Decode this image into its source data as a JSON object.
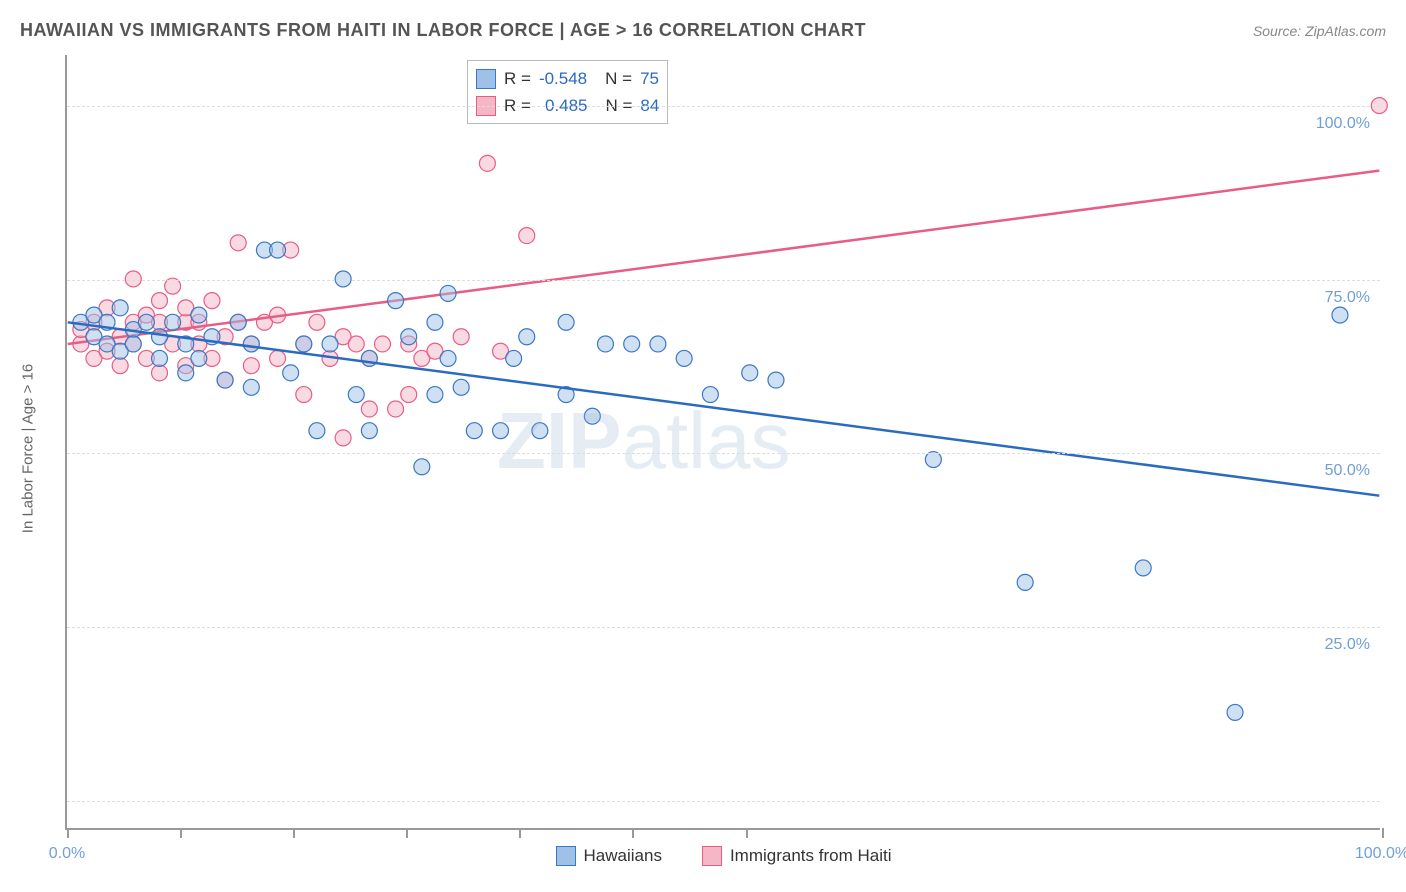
{
  "title": "HAWAIIAN VS IMMIGRANTS FROM HAITI IN LABOR FORCE | AGE > 16 CORRELATION CHART",
  "source": "Source: ZipAtlas.com",
  "y_axis_label": "In Labor Force | Age > 16",
  "watermark": "ZIPatlas",
  "chart": {
    "type": "scatter",
    "xlim": [
      0,
      100
    ],
    "ylim": [
      0,
      107
    ],
    "x_ticks": [
      0,
      8.6,
      17.2,
      25.8,
      34.4,
      43.0,
      51.6,
      100
    ],
    "x_tick_labels": {
      "0": "0.0%",
      "100": "100.0%"
    },
    "y_gridlines": [
      4,
      28,
      52,
      76,
      100
    ],
    "y_tick_labels": {
      "28": "25.0%",
      "52": "50.0%",
      "76": "75.0%",
      "100": "100.0%"
    },
    "grid_color": "#dddddd",
    "axis_color": "#999999",
    "background_color": "#ffffff",
    "tick_label_color": "#6f9fd8",
    "marker_radius": 8,
    "marker_opacity": 0.5,
    "line_width": 2.5
  },
  "series": {
    "blue": {
      "label": "Hawaiians",
      "fill": "#9fc1e8",
      "stroke": "#3b78c4",
      "line_color": "#2a6bc0",
      "R": "-0.548",
      "N": "75",
      "trend": {
        "x1": 0,
        "y1": 70,
        "x2": 100,
        "y2": 46
      },
      "points": [
        [
          1,
          70
        ],
        [
          2,
          68
        ],
        [
          2,
          71
        ],
        [
          3,
          67
        ],
        [
          3,
          70
        ],
        [
          4,
          66
        ],
        [
          4,
          72
        ],
        [
          5,
          69
        ],
        [
          5,
          67
        ],
        [
          6,
          70
        ],
        [
          7,
          68
        ],
        [
          7,
          65
        ],
        [
          8,
          70
        ],
        [
          9,
          67
        ],
        [
          9,
          63
        ],
        [
          10,
          65
        ],
        [
          10,
          71
        ],
        [
          11,
          68
        ],
        [
          12,
          62
        ],
        [
          13,
          70
        ],
        [
          14,
          67
        ],
        [
          14,
          61
        ],
        [
          15,
          80
        ],
        [
          16,
          80
        ],
        [
          17,
          63
        ],
        [
          18,
          67
        ],
        [
          19,
          55
        ],
        [
          20,
          67
        ],
        [
          21,
          76
        ],
        [
          22,
          60
        ],
        [
          23,
          65
        ],
        [
          23,
          55
        ],
        [
          25,
          73
        ],
        [
          26,
          68
        ],
        [
          27,
          50
        ],
        [
          28,
          70
        ],
        [
          28,
          60
        ],
        [
          29,
          74
        ],
        [
          29,
          65
        ],
        [
          30,
          61
        ],
        [
          31,
          55
        ],
        [
          33,
          55
        ],
        [
          34,
          65
        ],
        [
          35,
          68
        ],
        [
          36,
          55
        ],
        [
          38,
          60
        ],
        [
          38,
          70
        ],
        [
          40,
          57
        ],
        [
          41,
          67
        ],
        [
          43,
          67
        ],
        [
          45,
          67
        ],
        [
          47,
          65
        ],
        [
          49,
          60
        ],
        [
          52,
          63
        ],
        [
          54,
          62
        ],
        [
          66,
          51
        ],
        [
          73,
          34
        ],
        [
          82,
          36
        ],
        [
          89,
          16
        ],
        [
          97,
          71
        ]
      ]
    },
    "pink": {
      "label": "Immigrants from Haiti",
      "fill": "#f5b6c5",
      "stroke": "#e85d85",
      "line_color": "#e85d85",
      "R": "0.485",
      "N": "84",
      "trend": {
        "x1": 0,
        "y1": 67,
        "x2": 100,
        "y2": 91
      },
      "points": [
        [
          1,
          67
        ],
        [
          1,
          69
        ],
        [
          2,
          65
        ],
        [
          2,
          70
        ],
        [
          3,
          66
        ],
        [
          3,
          72
        ],
        [
          4,
          68
        ],
        [
          4,
          64
        ],
        [
          5,
          70
        ],
        [
          5,
          67
        ],
        [
          5,
          76
        ],
        [
          6,
          71
        ],
        [
          6,
          65
        ],
        [
          7,
          70
        ],
        [
          7,
          73
        ],
        [
          7,
          63
        ],
        [
          8,
          67
        ],
        [
          8,
          75
        ],
        [
          9,
          70
        ],
        [
          9,
          64
        ],
        [
          9,
          72
        ],
        [
          10,
          67
        ],
        [
          10,
          70
        ],
        [
          11,
          65
        ],
        [
          11,
          73
        ],
        [
          12,
          68
        ],
        [
          12,
          62
        ],
        [
          13,
          70
        ],
        [
          13,
          81
        ],
        [
          14,
          67
        ],
        [
          14,
          64
        ],
        [
          15,
          70
        ],
        [
          16,
          71
        ],
        [
          16,
          65
        ],
        [
          17,
          80
        ],
        [
          18,
          67
        ],
        [
          18,
          60
        ],
        [
          19,
          70
        ],
        [
          20,
          65
        ],
        [
          21,
          68
        ],
        [
          21,
          54
        ],
        [
          22,
          67
        ],
        [
          23,
          58
        ],
        [
          23,
          65
        ],
        [
          24,
          67
        ],
        [
          25,
          58
        ],
        [
          26,
          67
        ],
        [
          26,
          60
        ],
        [
          27,
          65
        ],
        [
          28,
          66
        ],
        [
          30,
          68
        ],
        [
          32,
          92
        ],
        [
          33,
          66
        ],
        [
          35,
          82
        ],
        [
          100,
          100
        ]
      ]
    }
  },
  "legend_top": {
    "R_label": "R =",
    "N_label": "N ="
  }
}
